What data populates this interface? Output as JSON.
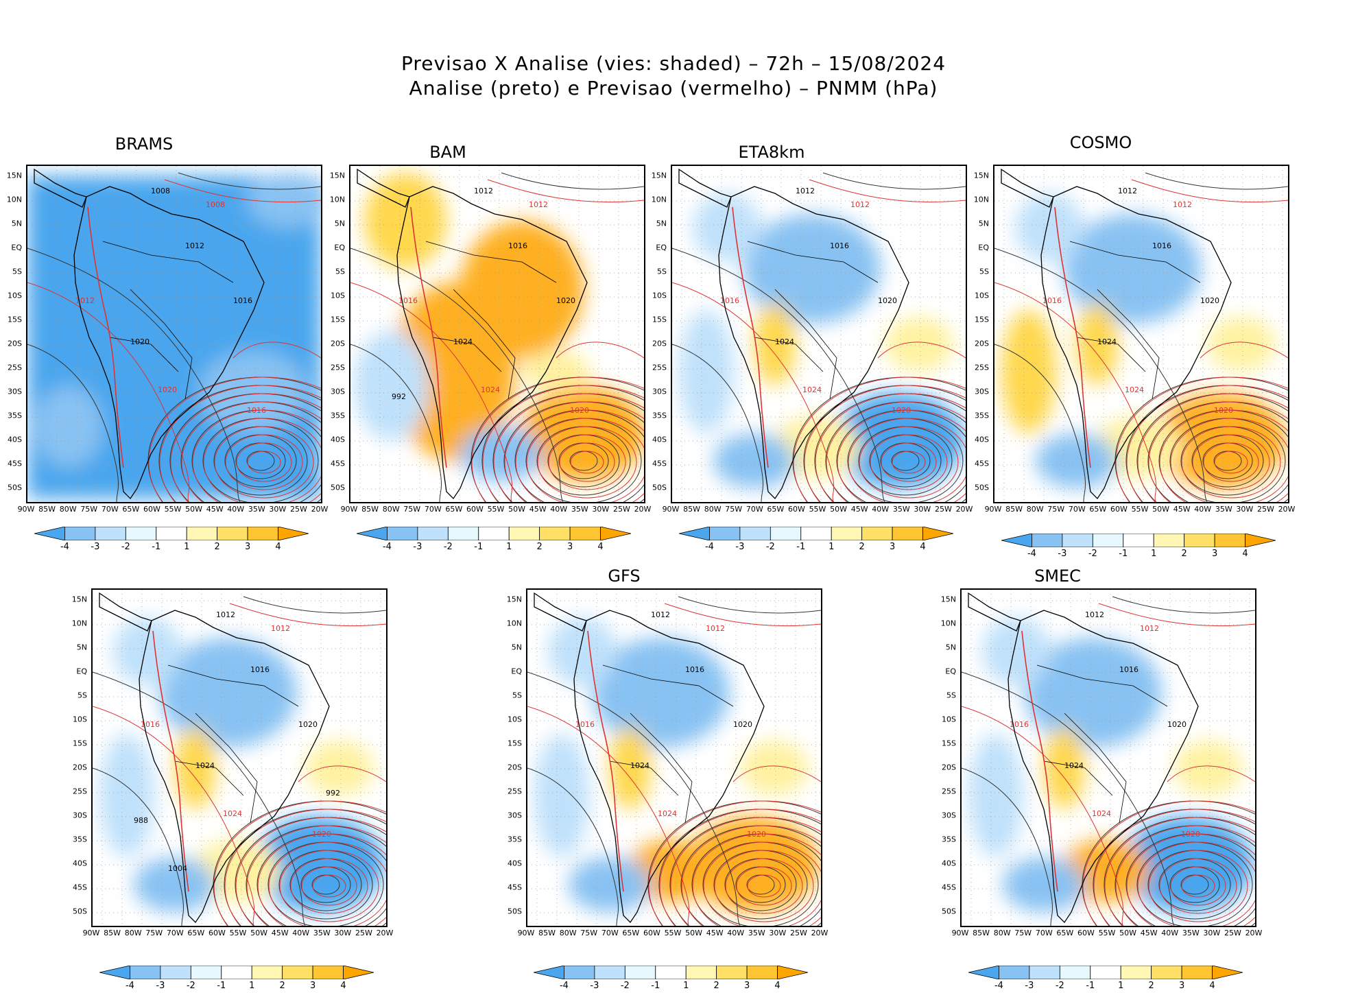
{
  "header": {
    "line1": "Previsao X Analise (vies: shaded) – 72h – 15/08/2024",
    "line2": "Analise (preto) e Previsao (vermelho) – PNMM (hPa)"
  },
  "axes": {
    "lat": [
      "15N",
      "10N",
      "5N",
      "EQ",
      "5S",
      "10S",
      "15S",
      "20S",
      "25S",
      "30S",
      "35S",
      "40S",
      "45S",
      "50S"
    ],
    "lon": [
      "90W",
      "85W",
      "80W",
      "75W",
      "70W",
      "65W",
      "60W",
      "55W",
      "50W",
      "45W",
      "40W",
      "35W",
      "30W",
      "25W",
      "20W"
    ]
  },
  "colorbar": {
    "ticks": [
      "-4",
      "-3",
      "-2",
      "-1",
      "1",
      "2",
      "3",
      "4"
    ],
    "colors": [
      "#4aa6ee",
      "#88c2f3",
      "#bfe1fb",
      "#e6f7fd",
      "#ffffff",
      "#fff7b3",
      "#ffe066",
      "#ffc533",
      "#ffa500"
    ]
  },
  "panels": [
    {
      "name": "BRAMS",
      "label": "BRAMS",
      "style": "cool",
      "isobars_black": [
        "1008",
        "1012",
        "1016",
        "1020"
      ],
      "isobars_red": [
        "1008",
        "1012",
        "1016",
        "1020"
      ]
    },
    {
      "name": "BAM",
      "label": "BAM",
      "style": "warm",
      "isobars_black": [
        "1012",
        "1016",
        "1020",
        "1024",
        "992"
      ],
      "isobars_red": [
        "1012",
        "1016",
        "1020",
        "1024"
      ]
    },
    {
      "name": "ETA8km",
      "label": "ETA8km",
      "style": "mixed",
      "isobars_black": [
        "1012",
        "1016",
        "1020",
        "1024"
      ],
      "isobars_red": [
        "1012",
        "1016",
        "1020",
        "1024"
      ]
    },
    {
      "name": "COSMO",
      "label": "COSMO",
      "style": "mixed",
      "isobars_black": [
        "1012",
        "1016",
        "1020",
        "1024"
      ],
      "isobars_red": [
        "1012",
        "1016",
        "1020",
        "1024"
      ]
    },
    {
      "name": "panel5",
      "label": "",
      "style": "mixed",
      "isobars_black": [
        "1012",
        "1016",
        "1020",
        "1024",
        "988",
        "992",
        "1004"
      ],
      "isobars_red": [
        "1012",
        "1016",
        "1020",
        "1024"
      ]
    },
    {
      "name": "GFS",
      "label": "GFS",
      "style": "mixed",
      "isobars_black": [
        "1012",
        "1016",
        "1020",
        "1024"
      ],
      "isobars_red": [
        "1012",
        "1016",
        "1020",
        "1024"
      ]
    },
    {
      "name": "SMEC",
      "label": "SMEC",
      "style": "mixed",
      "isobars_black": [
        "1012",
        "1016",
        "1020",
        "1024"
      ],
      "isobars_red": [
        "1012",
        "1016",
        "1020",
        "1024"
      ]
    }
  ]
}
